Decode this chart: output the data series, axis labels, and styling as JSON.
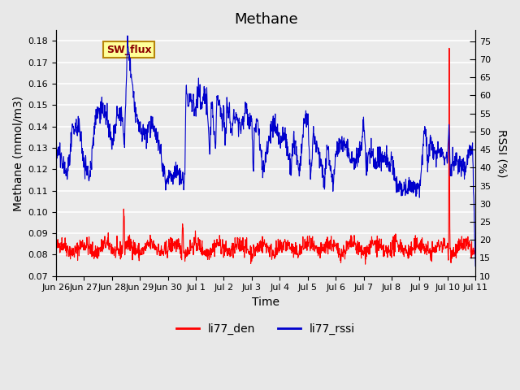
{
  "title": "Methane",
  "ylabel_left": "Methane (mmol/m3)",
  "ylabel_right": "RSSI (%)",
  "xlabel": "Time",
  "ylim_left": [
    0.07,
    0.185
  ],
  "ylim_right": [
    10,
    78
  ],
  "yticks_left": [
    0.07,
    0.08,
    0.09,
    0.1,
    0.11,
    0.12,
    0.13,
    0.14,
    0.15,
    0.16,
    0.17,
    0.18
  ],
  "yticks_right": [
    10,
    15,
    20,
    25,
    30,
    35,
    40,
    45,
    50,
    55,
    60,
    65,
    70,
    75
  ],
  "xtick_positions": [
    0,
    1,
    2,
    3,
    4,
    5,
    6,
    7,
    8,
    9,
    10,
    11,
    12,
    13,
    14,
    15
  ],
  "xtick_labels": [
    "Jun 26",
    "Jun 27",
    "Jun 28",
    "Jun 29",
    "Jun 30",
    "Jul 1",
    "Jul 2",
    "Jul 3",
    "Jul 4",
    "Jul 5",
    "Jul 6",
    "Jul 7",
    "Jul 8",
    "Jul 9",
    "Jul 10",
    "Jul 11"
  ],
  "background_color": "#e8e8e8",
  "plot_bg_color": "#ebebeb",
  "grid_color": "#ffffff",
  "line_color_red": "#ff0000",
  "line_color_blue": "#0000cc",
  "legend_label_red": "li77_den",
  "legend_label_blue": "li77_rssi",
  "annotation_text": "SW_flux",
  "annotation_color": "#8b0000",
  "annotation_bg": "#ffff99",
  "annotation_border": "#b8860b",
  "title_fontsize": 13,
  "axis_fontsize": 10,
  "tick_fontsize": 8,
  "legend_fontsize": 10,
  "n_days": 15,
  "pts_per_day": 96
}
